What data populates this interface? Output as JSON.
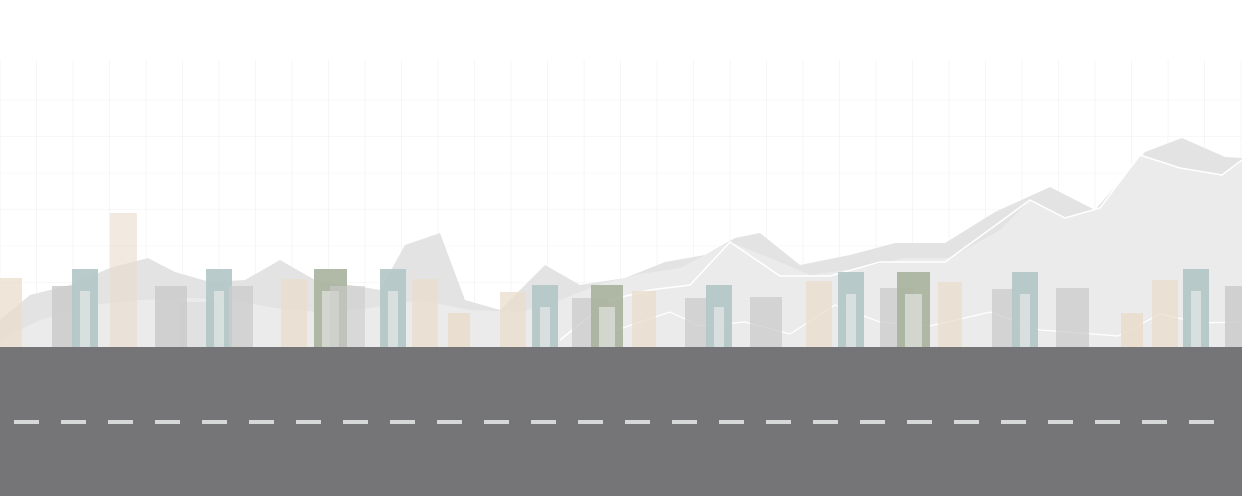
{
  "colors": {
    "background": "#ffffff",
    "grid": "#e6e6e6",
    "mountain_back": "#e3e3e3",
    "mountain_front": "#ececec",
    "ridge_line": "#ffffff",
    "road": "#757578",
    "road_marking": "#d6d8d8",
    "building_tan": "#eadccb",
    "building_grey": "#cbcbcb",
    "building_teal": "#b3c5c5",
    "building_olive": "#a9b19d"
  },
  "icons": {
    "background": "city-skyline-illustration",
    "ground": "road-icon"
  },
  "chart_data": []
}
